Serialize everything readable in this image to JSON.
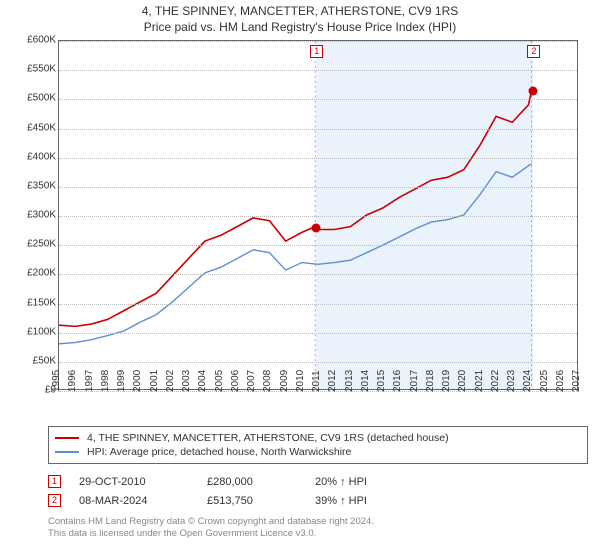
{
  "title": {
    "line1": "4, THE SPINNEY, MANCETTER, ATHERSTONE, CV9 1RS",
    "line2": "Price paid vs. HM Land Registry's House Price Index (HPI)"
  },
  "chart": {
    "plot_bg": "#ffffff",
    "border_color": "#666666",
    "grid_color": "#bbbbbb",
    "shade_color": "#eaf2fb",
    "x_min": 1995,
    "x_max": 2027,
    "y_min": 0,
    "y_max": 600000,
    "y_ticks": [
      0,
      50000,
      100000,
      150000,
      200000,
      250000,
      300000,
      350000,
      400000,
      450000,
      500000,
      550000,
      600000
    ],
    "y_tick_labels": [
      "£0",
      "£50K",
      "£100K",
      "£150K",
      "£200K",
      "£250K",
      "£300K",
      "£350K",
      "£400K",
      "£450K",
      "£500K",
      "£550K",
      "£600K"
    ],
    "x_ticks": [
      1995,
      1996,
      1997,
      1998,
      1999,
      2000,
      2001,
      2002,
      2003,
      2004,
      2005,
      2006,
      2007,
      2008,
      2009,
      2010,
      2011,
      2012,
      2013,
      2014,
      2015,
      2016,
      2017,
      2018,
      2019,
      2020,
      2021,
      2022,
      2023,
      2024,
      2025,
      2026,
      2027
    ],
    "shade_from": 2010.83,
    "shade_to": 2024.19,
    "series": {
      "price_paid": {
        "color": "#cc0000",
        "width": 1.6,
        "label": "4, THE SPINNEY, MANCETTER, ATHERSTONE, CV9 1RS (detached house)",
        "points": [
          [
            1995,
            110000
          ],
          [
            1996,
            108000
          ],
          [
            1997,
            112000
          ],
          [
            1998,
            120000
          ],
          [
            1999,
            135000
          ],
          [
            2000,
            150000
          ],
          [
            2001,
            165000
          ],
          [
            2002,
            195000
          ],
          [
            2003,
            225000
          ],
          [
            2004,
            255000
          ],
          [
            2005,
            265000
          ],
          [
            2006,
            280000
          ],
          [
            2007,
            295000
          ],
          [
            2008,
            290000
          ],
          [
            2009,
            255000
          ],
          [
            2010,
            270000
          ],
          [
            2010.83,
            280000
          ],
          [
            2011,
            275000
          ],
          [
            2012,
            275000
          ],
          [
            2013,
            280000
          ],
          [
            2014,
            300000
          ],
          [
            2015,
            312000
          ],
          [
            2016,
            330000
          ],
          [
            2017,
            345000
          ],
          [
            2018,
            360000
          ],
          [
            2019,
            365000
          ],
          [
            2020,
            378000
          ],
          [
            2021,
            420000
          ],
          [
            2022,
            470000
          ],
          [
            2023,
            460000
          ],
          [
            2024,
            490000
          ],
          [
            2024.19,
            513750
          ]
        ]
      },
      "hpi": {
        "color": "#5b8fd6",
        "width": 1.4,
        "label": "HPI: Average price, detached house, North Warwickshire",
        "points": [
          [
            1995,
            78000
          ],
          [
            1996,
            80000
          ],
          [
            1997,
            85000
          ],
          [
            1998,
            92000
          ],
          [
            1999,
            100000
          ],
          [
            2000,
            115000
          ],
          [
            2001,
            128000
          ],
          [
            2002,
            150000
          ],
          [
            2003,
            175000
          ],
          [
            2004,
            200000
          ],
          [
            2005,
            210000
          ],
          [
            2006,
            225000
          ],
          [
            2007,
            240000
          ],
          [
            2008,
            235000
          ],
          [
            2009,
            205000
          ],
          [
            2010,
            218000
          ],
          [
            2011,
            215000
          ],
          [
            2012,
            218000
          ],
          [
            2013,
            222000
          ],
          [
            2014,
            235000
          ],
          [
            2015,
            248000
          ],
          [
            2016,
            262000
          ],
          [
            2017,
            276000
          ],
          [
            2018,
            288000
          ],
          [
            2019,
            292000
          ],
          [
            2020,
            300000
          ],
          [
            2021,
            335000
          ],
          [
            2022,
            375000
          ],
          [
            2023,
            365000
          ],
          [
            2024,
            385000
          ],
          [
            2024.19,
            388000
          ]
        ]
      }
    },
    "markers": [
      {
        "n": "1",
        "x": 2010.83,
        "y": 280000
      },
      {
        "n": "2",
        "x": 2024.19,
        "y": 513750
      }
    ]
  },
  "legend": {
    "row1_color": "#cc0000",
    "row2_color": "#5b8fd6"
  },
  "sales": [
    {
      "n": "1",
      "date": "29-OCT-2010",
      "price": "£280,000",
      "pct": "20% ↑ HPI"
    },
    {
      "n": "2",
      "date": "08-MAR-2024",
      "price": "£513,750",
      "pct": "39% ↑ HPI"
    }
  ],
  "footnote": {
    "line1": "Contains HM Land Registry data © Crown copyright and database right 2024.",
    "line2": "This data is licensed under the Open Government Licence v3.0."
  }
}
